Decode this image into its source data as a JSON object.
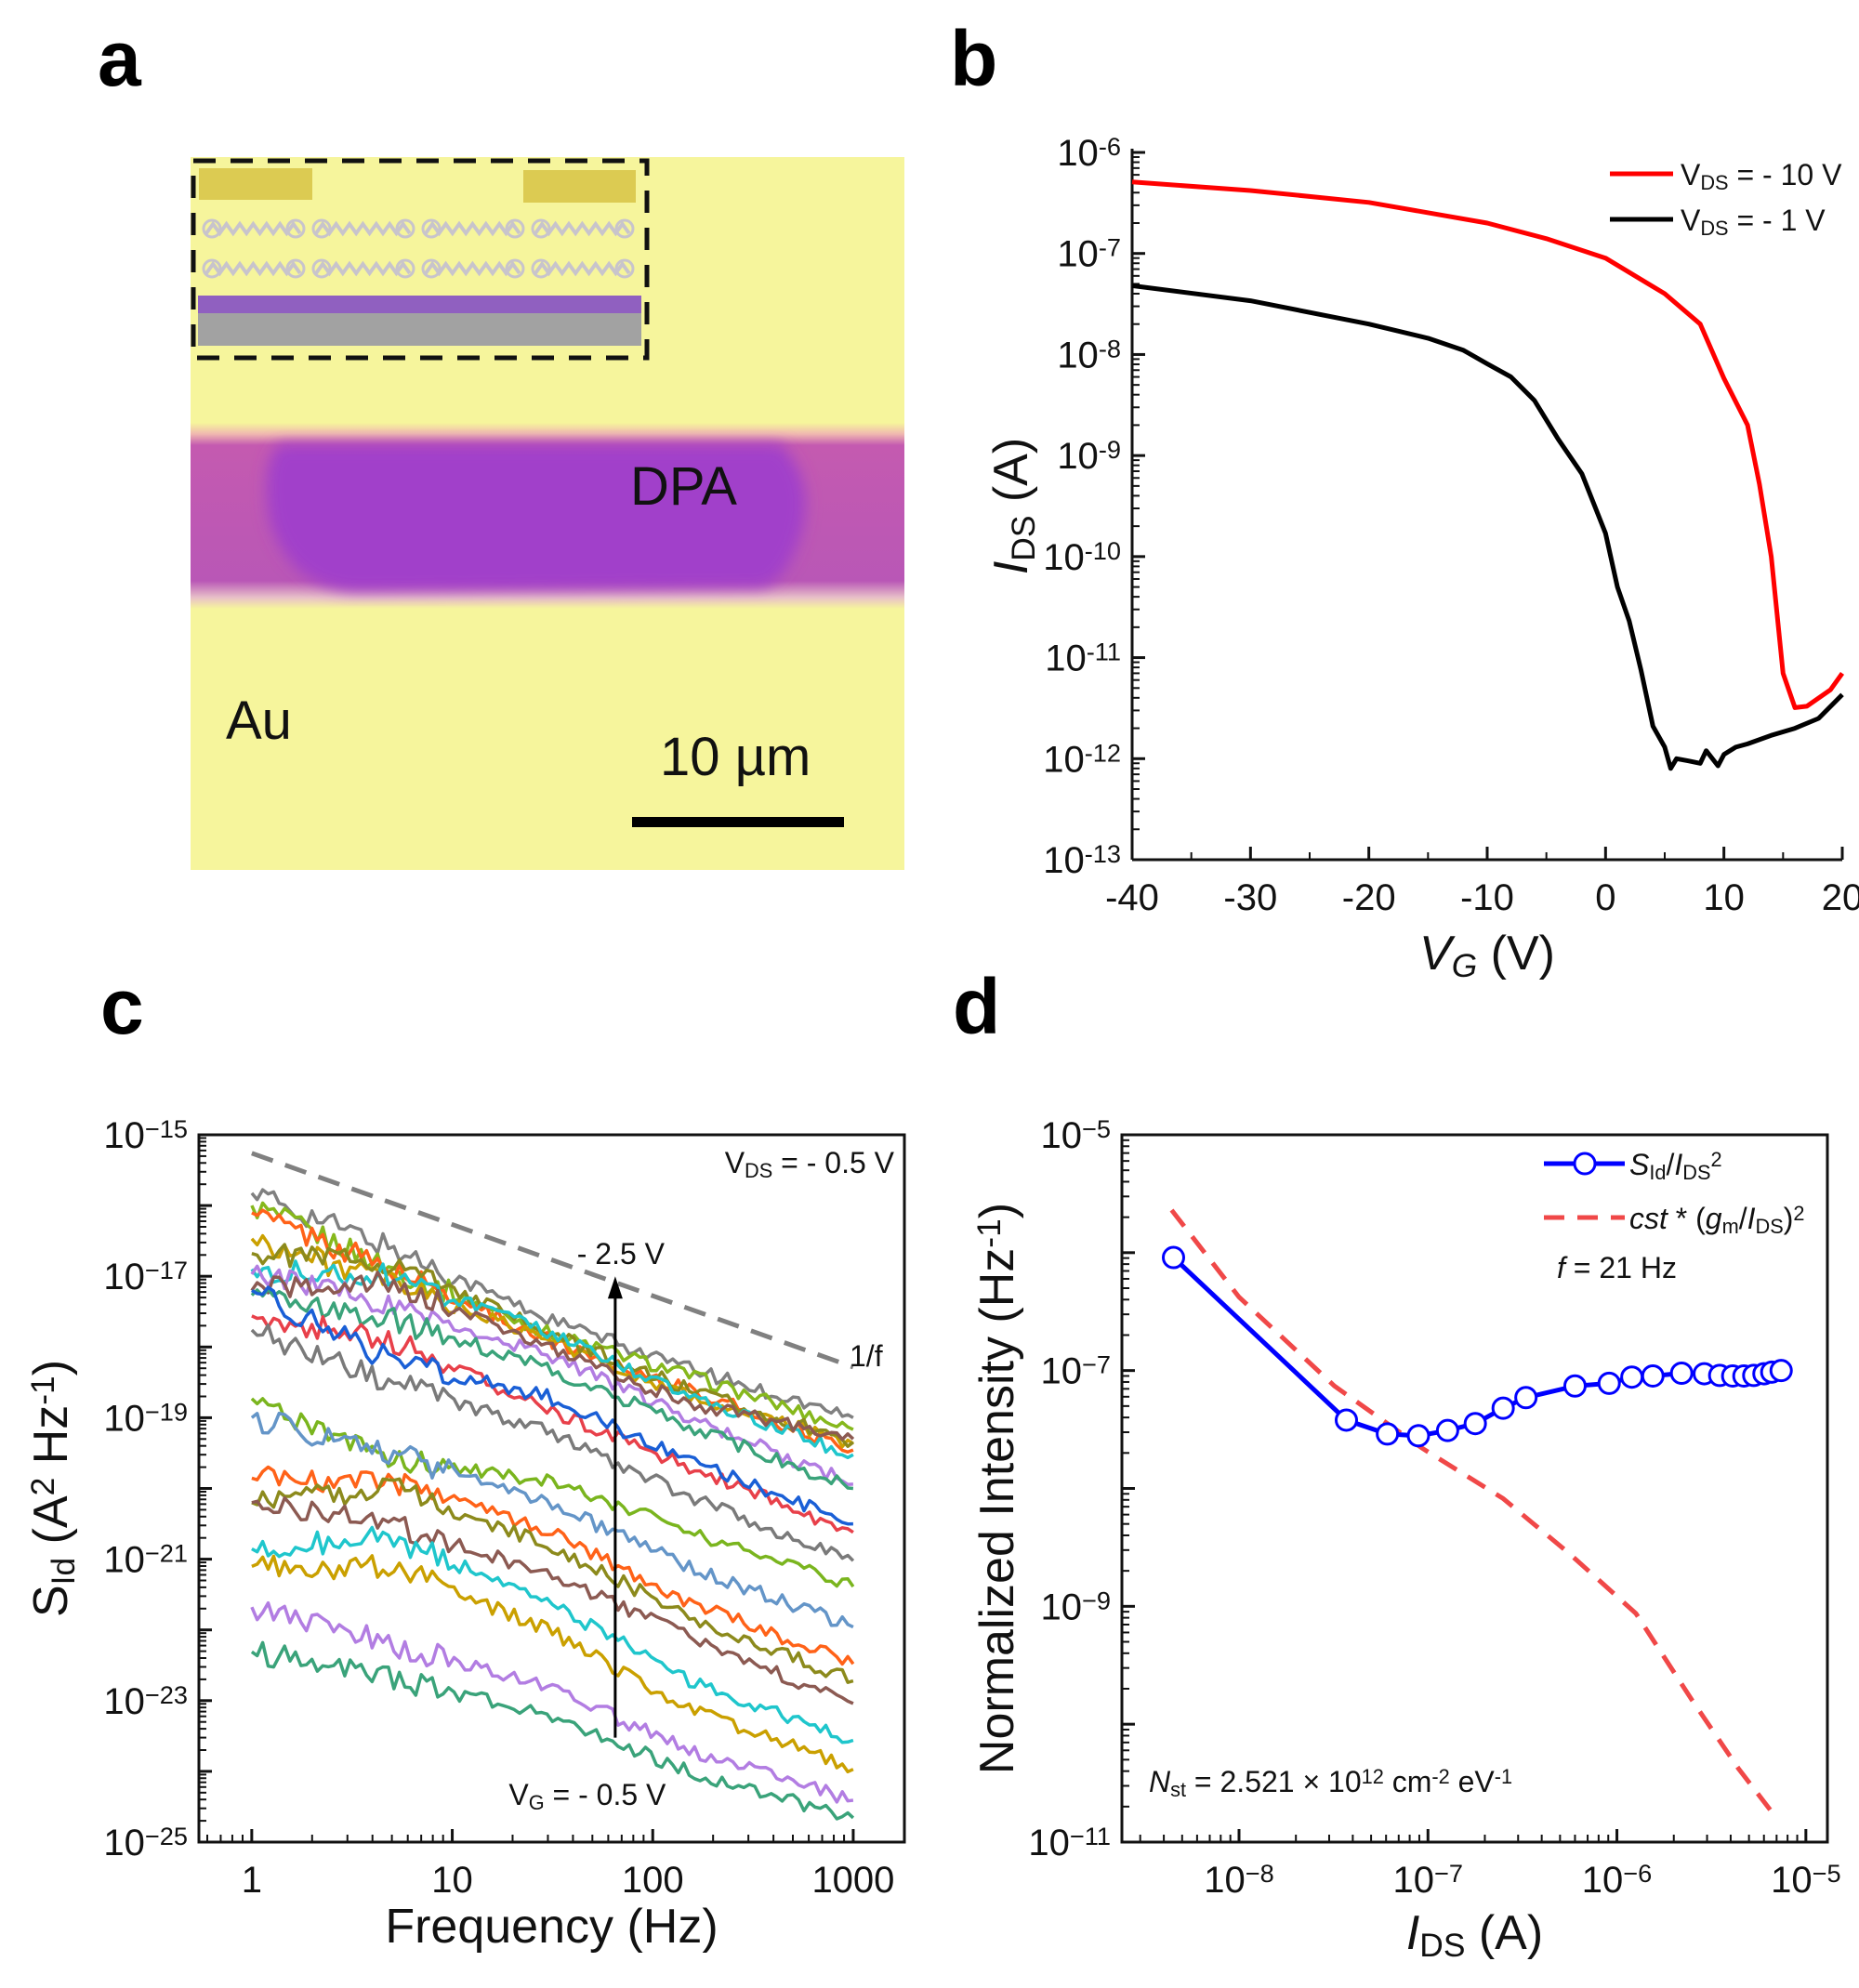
{
  "panels": {
    "a": "a",
    "b": "b",
    "c": "c",
    "d": "d"
  },
  "micrograph": {
    "material_label": "DPA",
    "electrode_label": "Au",
    "scale_bar_label": "10 µm",
    "colors": {
      "substrate": "#f6f59c",
      "channel_outer": "#b957b6",
      "channel_inner": "#a13fca",
      "inset_electrode": "#dccb52",
      "inset_dielectric": "#9060c0",
      "inset_gate": "#a0a0a0"
    }
  },
  "chart_data": [
    {
      "panel": "b",
      "type": "line",
      "xlabel": [
        {
          "t": "V",
          "s": "i"
        },
        {
          "t": "G",
          "s": "isub"
        },
        {
          "t": " (V)"
        }
      ],
      "ylabel": [
        {
          "t": "I",
          "s": "i"
        },
        {
          "t": "DS",
          "s": "sub"
        },
        {
          "t": " (A)"
        }
      ],
      "xlim": [
        -40,
        20
      ],
      "ylim": [
        1e-13,
        1e-06
      ],
      "yscale": "log",
      "xticks": [
        -40,
        -30,
        -20,
        -10,
        0,
        10,
        20
      ],
      "xtick_labels": [
        "-40",
        "-30",
        "-20",
        "-10",
        "0",
        "10",
        "20"
      ],
      "yticks": [
        1e-06,
        1e-07,
        1e-08,
        1e-09,
        1e-10,
        1e-11,
        1e-12,
        1e-13
      ],
      "ytick_labels": [
        [
          "10",
          "-6"
        ],
        [
          "10",
          "-7"
        ],
        [
          "10",
          "-8"
        ],
        [
          "10",
          "-9"
        ],
        [
          "10",
          "-10"
        ],
        [
          "10",
          "-11"
        ],
        [
          "10",
          "-12"
        ],
        [
          "10",
          "-13"
        ]
      ],
      "legend": "top-right",
      "series": [
        {
          "name": [
            {
              "t": "V"
            },
            {
              "t": "DS",
              "s": "sub"
            },
            {
              "t": " = - 10 V"
            }
          ],
          "color": "#ff0000",
          "x": [
            -40,
            -30,
            -20,
            -10,
            -5,
            0,
            5,
            8,
            10,
            12,
            13,
            14,
            15,
            16,
            17,
            19,
            20
          ],
          "y": [
            5.1e-07,
            4.2e-07,
            3.2e-07,
            2e-07,
            1.4e-07,
            9e-08,
            4e-08,
            2e-08,
            5.8e-09,
            2e-09,
            5.2e-10,
            1e-10,
            7e-12,
            3.2e-12,
            3.3e-12,
            4.8e-12,
            7e-12
          ]
        },
        {
          "name": [
            {
              "t": "V"
            },
            {
              "t": "DS",
              "s": "sub"
            },
            {
              "t": " =  - 1 V"
            }
          ],
          "color": "#000000",
          "x": [
            -40,
            -30,
            -20,
            -15,
            -12,
            -10,
            -8,
            -6,
            -4,
            -2,
            0,
            1,
            2,
            3,
            4,
            5,
            5.5,
            6,
            7,
            8,
            8.5,
            9.5,
            10,
            11,
            12,
            14,
            16,
            18,
            20
          ],
          "y": [
            4.8e-08,
            3.4e-08,
            2e-08,
            1.45e-08,
            1.1e-08,
            8.1e-09,
            6e-09,
            3.5e-09,
            1.45e-09,
            6.6e-10,
            1.7e-10,
            5e-11,
            2.3e-11,
            7.5e-12,
            2.1e-12,
            1.3e-12,
            8e-13,
            1e-12,
            9.5e-13,
            9e-13,
            1.2e-12,
            8.5e-13,
            1.1e-12,
            1.3e-12,
            1.4e-12,
            1.7e-12,
            2e-12,
            2.5e-12,
            4.3e-12
          ]
        }
      ]
    },
    {
      "panel": "c",
      "type": "line",
      "xlabel": [
        {
          "t": "Frequency (Hz)"
        }
      ],
      "ylabel": [
        {
          "t": "S"
        },
        {
          "t": "Id",
          "s": "sub"
        },
        {
          "t": " (A"
        },
        {
          "t": "2",
          "s": "sup"
        },
        {
          "t": " Hz"
        },
        {
          "t": "-1",
          "s": "sup"
        },
        {
          "t": ")"
        }
      ],
      "xscale": "log",
      "yscale": "log",
      "xlim": [
        0.545,
        1800
      ],
      "ylim": [
        1e-25,
        1e-15
      ],
      "xticks": [
        1,
        10,
        100,
        1000
      ],
      "xtick_labels": [
        "1",
        "10",
        "100",
        "1000"
      ],
      "yticks": [
        1e-15,
        1e-17,
        1e-19,
        1e-21,
        1e-23,
        1e-25
      ],
      "ytick_labels": [
        [
          "10",
          "−15"
        ],
        [
          "10",
          "−17"
        ],
        [
          "10",
          "−19"
        ],
        [
          "10",
          "−21"
        ],
        [
          "10",
          "−23"
        ],
        [
          "10",
          "−25"
        ]
      ],
      "x": [
        1,
        5,
        30,
        150,
        1000
      ],
      "series": [
        {
          "color": "#808080",
          "values": [
            1.5e-16,
            2.5e-17,
            2.5e-18,
            5e-19,
            1e-19
          ]
        },
        {
          "color": "#86b81c",
          "values": [
            1e-16,
            1.26e-17,
            1.6e-18,
            4e-19,
            6.8e-20
          ]
        },
        {
          "color": "#ff6218",
          "values": [
            7.9e-17,
            1.26e-17,
            1.26e-18,
            2.5e-19,
            3.5e-20
          ]
        },
        {
          "color": "#caa000",
          "values": [
            3.4e-17,
            7.9e-18,
            1.26e-18,
            2e-19,
            4.3e-20
          ]
        },
        {
          "color": "#8c8a1c",
          "values": [
            2.1e-17,
            1.6e-17,
            1.6e-18,
            2.5e-19,
            4.5e-20
          ]
        },
        {
          "color": "#1fc6cc",
          "values": [
            1.26e-17,
            1e-17,
            1.6e-18,
            2e-19,
            3e-20
          ]
        },
        {
          "color": "#b27de2",
          "values": [
            1.07e-17,
            4e-18,
            7.9e-19,
            1e-19,
            1.15e-20
          ]
        },
        {
          "color": "#8c5a52",
          "values": [
            6.3e-18,
            7.9e-18,
            1e-18,
            1.6e-19,
            5e-20
          ]
        },
        {
          "color": "#3aa37a",
          "values": [
            5.4e-18,
            2.5e-18,
            5e-19,
            7.9e-20,
            1e-20
          ]
        },
        {
          "color": "#e8404a",
          "values": [
            2.75e-18,
            1.26e-18,
            1.26e-19,
            2e-20,
            2.4e-21
          ]
        },
        {
          "color": "#1a5fd6",
          "values": [
            6.3e-18,
            6.3e-19,
            2e-19,
            2.5e-20,
            3.16e-21
          ]
        },
        {
          "color": "#7a7a7a",
          "values": [
            1.74e-18,
            3.16e-19,
            6.3e-20,
            7.9e-21,
            9.5e-22
          ]
        },
        {
          "color": "#7ab51e",
          "values": [
            1.86e-19,
            2.5e-20,
            1.26e-20,
            2.5e-21,
            4.1e-22
          ]
        },
        {
          "color": "#6495c8",
          "values": [
            1e-19,
            3.16e-20,
            6.3e-21,
            7.9e-22,
            1.1e-22
          ]
        },
        {
          "color": "#ff6218",
          "values": [
            1.4e-20,
            1.26e-20,
            2.5e-21,
            2.5e-22,
            3.3e-23
          ]
        },
        {
          "color": "#8c8a1c",
          "values": [
            6.3e-21,
            1e-20,
            1.6e-21,
            1.6e-22,
            1.9e-23
          ]
        },
        {
          "color": "#8c5a52",
          "values": [
            6.3e-21,
            3.16e-21,
            6.3e-22,
            7.9e-23,
            9.1e-24
          ]
        },
        {
          "color": "#1fc6cc",
          "values": [
            1.4e-21,
            2e-21,
            2.5e-22,
            2e-23,
            2.75e-24
          ]
        },
        {
          "color": "#caa000",
          "values": [
            7.9e-22,
            7.9e-22,
            1e-22,
            7.9e-24,
            1.07e-24
          ]
        },
        {
          "color": "#b27de2",
          "values": [
            2.1e-22,
            6.3e-23,
            1.6e-23,
            2e-24,
            3.9e-25
          ]
        },
        {
          "color": "#3aa37a",
          "values": [
            4.9e-23,
            2e-23,
            6.3e-24,
            1e-24,
            2.2e-25
          ]
        }
      ],
      "reference_line": {
        "label": "1/f",
        "color": "#808080",
        "x": [
          1,
          1000
        ],
        "y": [
          5.5e-16,
          5.2e-19
        ]
      },
      "arrow": {
        "x": 65,
        "y_from": 3e-24,
        "y_to": 1e-17,
        "top_label": "- 2.5 V",
        "bottom_label": [
          {
            "t": "V"
          },
          {
            "t": "G",
            "s": "sub"
          },
          {
            "t": " = - 0.5 V"
          }
        ]
      },
      "annotation": [
        {
          "t": "V"
        },
        {
          "t": "DS",
          "s": "sub"
        },
        {
          "t": " = - 0.5 V"
        }
      ]
    },
    {
      "panel": "d",
      "type": "scatter",
      "xlabel": [
        {
          "t": "I",
          "s": "i"
        },
        {
          "t": "DS",
          "s": "sub"
        },
        {
          "t": " (A)"
        }
      ],
      "ylabel": [
        {
          "t": "Normalized Intensity (Hz"
        },
        {
          "t": "-1",
          "s": "sup"
        },
        {
          "t": ")"
        }
      ],
      "xscale": "log",
      "yscale": "log",
      "xlim": [
        2.4e-09,
        1.3e-05
      ],
      "ylim": [
        1e-11,
        1e-05
      ],
      "xticks": [
        1e-08,
        1e-07,
        1e-06,
        1e-05
      ],
      "xtick_labels": [
        [
          "10",
          "−8"
        ],
        [
          "10",
          "−7"
        ],
        [
          "10",
          "−6"
        ],
        [
          "10",
          "−5"
        ]
      ],
      "yticks": [
        1e-05,
        1e-07,
        1e-09,
        1e-11
      ],
      "ytick_labels": [
        [
          "10",
          "−5"
        ],
        [
          "10",
          "−7"
        ],
        [
          "10",
          "−9"
        ],
        [
          "10",
          "−11"
        ]
      ],
      "legend": "top-right",
      "series": [
        {
          "name": [
            {
              "t": "S",
              "s": "i"
            },
            {
              "t": "Id",
              "s": "sub"
            },
            {
              "t": "/"
            },
            {
              "t": "I",
              "s": "i"
            },
            {
              "t": "DS",
              "s": "sub"
            },
            {
              "t": "2",
              "s": "sup"
            }
          ],
          "color": "#0000ff",
          "style": "line-marker",
          "x": [
            4.5e-09,
            3.7e-08,
            6.1e-08,
            8.9e-08,
            1.27e-07,
            1.78e-07,
            2.5e-07,
            3.3e-07,
            6e-07,
            9.1e-07,
            1.2e-06,
            1.55e-06,
            2.2e-06,
            2.9e-06,
            3.5e-06,
            4.1e-06,
            4.7e-06,
            5.3e-06,
            6e-06,
            6.6e-06,
            7.4e-06
          ],
          "y": [
            9.1e-07,
            3.8e-08,
            2.9e-08,
            2.8e-08,
            3.1e-08,
            3.55e-08,
            4.8e-08,
            5.9e-08,
            7.4e-08,
            7.8e-08,
            8.8e-08,
            9e-08,
            9.5e-08,
            9.4e-08,
            9.1e-08,
            9e-08,
            9e-08,
            9.1e-08,
            9.4e-08,
            9.7e-08,
            1e-07
          ]
        },
        {
          "name": [
            {
              "t": "cst",
              "s": "i"
            },
            {
              "t": " * ("
            },
            {
              "t": "g",
              "s": "i"
            },
            {
              "t": "m",
              "s": "sub"
            },
            {
              "t": "/"
            },
            {
              "t": "I",
              "s": "i"
            },
            {
              "t": "DS",
              "s": "sub"
            },
            {
              "t": ")"
            },
            {
              "t": "2",
              "s": "sup"
            }
          ],
          "color": "#f04848",
          "style": "dashed",
          "x": [
            4.4e-09,
            1e-08,
            3.2e-08,
            9.3e-08,
            2.5e-07,
            5.6e-07,
            1.26e-06,
            2.5e-06,
            4.4e-06,
            7.1e-06
          ],
          "y": [
            2.3e-06,
            4.2e-07,
            7.4e-08,
            2.2e-08,
            8.2e-09,
            2.8e-09,
            8.7e-10,
            1.6e-10,
            4.2e-11,
            1.55e-11
          ]
        }
      ],
      "annotations": {
        "frequency": [
          {
            "t": "f",
            "s": "i"
          },
          {
            "t": " = 21 Hz"
          }
        ],
        "trap_density": [
          {
            "t": "N",
            "s": "i"
          },
          {
            "t": "st",
            "s": "sub"
          },
          {
            "t": " = 2.521 × 10"
          },
          {
            "t": "12",
            "s": "sup"
          },
          {
            "t": " cm"
          },
          {
            "t": "-2",
            "s": "sup"
          },
          {
            "t": " eV"
          },
          {
            "t": "-1",
            "s": "sup"
          }
        ]
      }
    }
  ]
}
